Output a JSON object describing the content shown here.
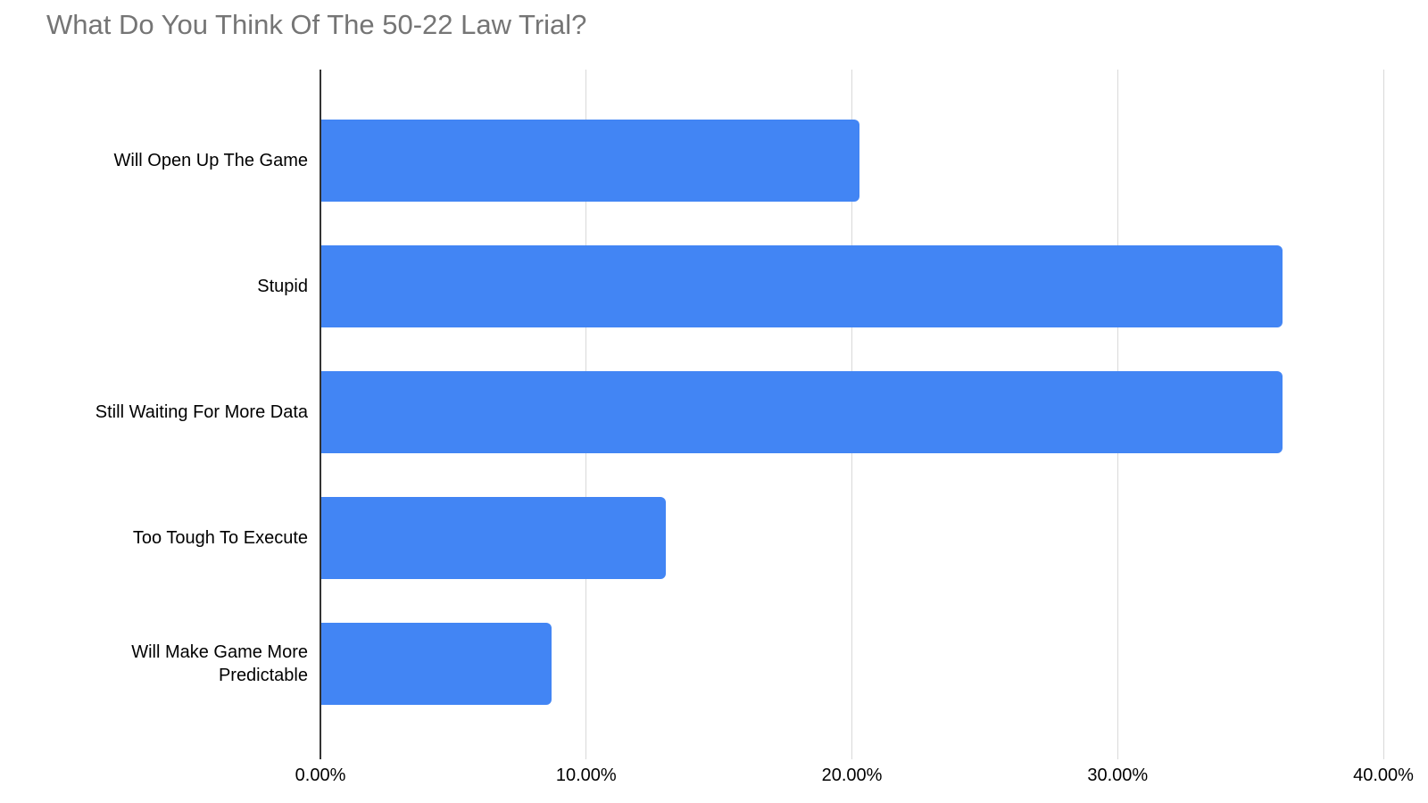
{
  "chart_data": {
    "type": "bar",
    "orientation": "horizontal",
    "title": "What Do You Think Of The 50-22 Law Trial?",
    "categories": [
      "Will Open Up The Game",
      "Stupid",
      "Still Waiting For More Data",
      "Too Tough To Execute",
      "Will Make Game More Predictable"
    ],
    "values": [
      20.3,
      36.2,
      36.2,
      13.0,
      8.7
    ],
    "value_unit": "%",
    "xlabel": "",
    "ylabel": "",
    "xlim": [
      0,
      40
    ],
    "x_ticks": [
      "0.00%",
      "10.00%",
      "20.00%",
      "30.00%",
      "40.00%"
    ],
    "x_tick_values": [
      0,
      10,
      20,
      30,
      40
    ],
    "grid": true,
    "legend": false,
    "colors": {
      "bar": "#4285f4",
      "title": "#757575",
      "gridline": "#d9d9d9",
      "axis_line": "#333333",
      "label": "#000000"
    }
  }
}
